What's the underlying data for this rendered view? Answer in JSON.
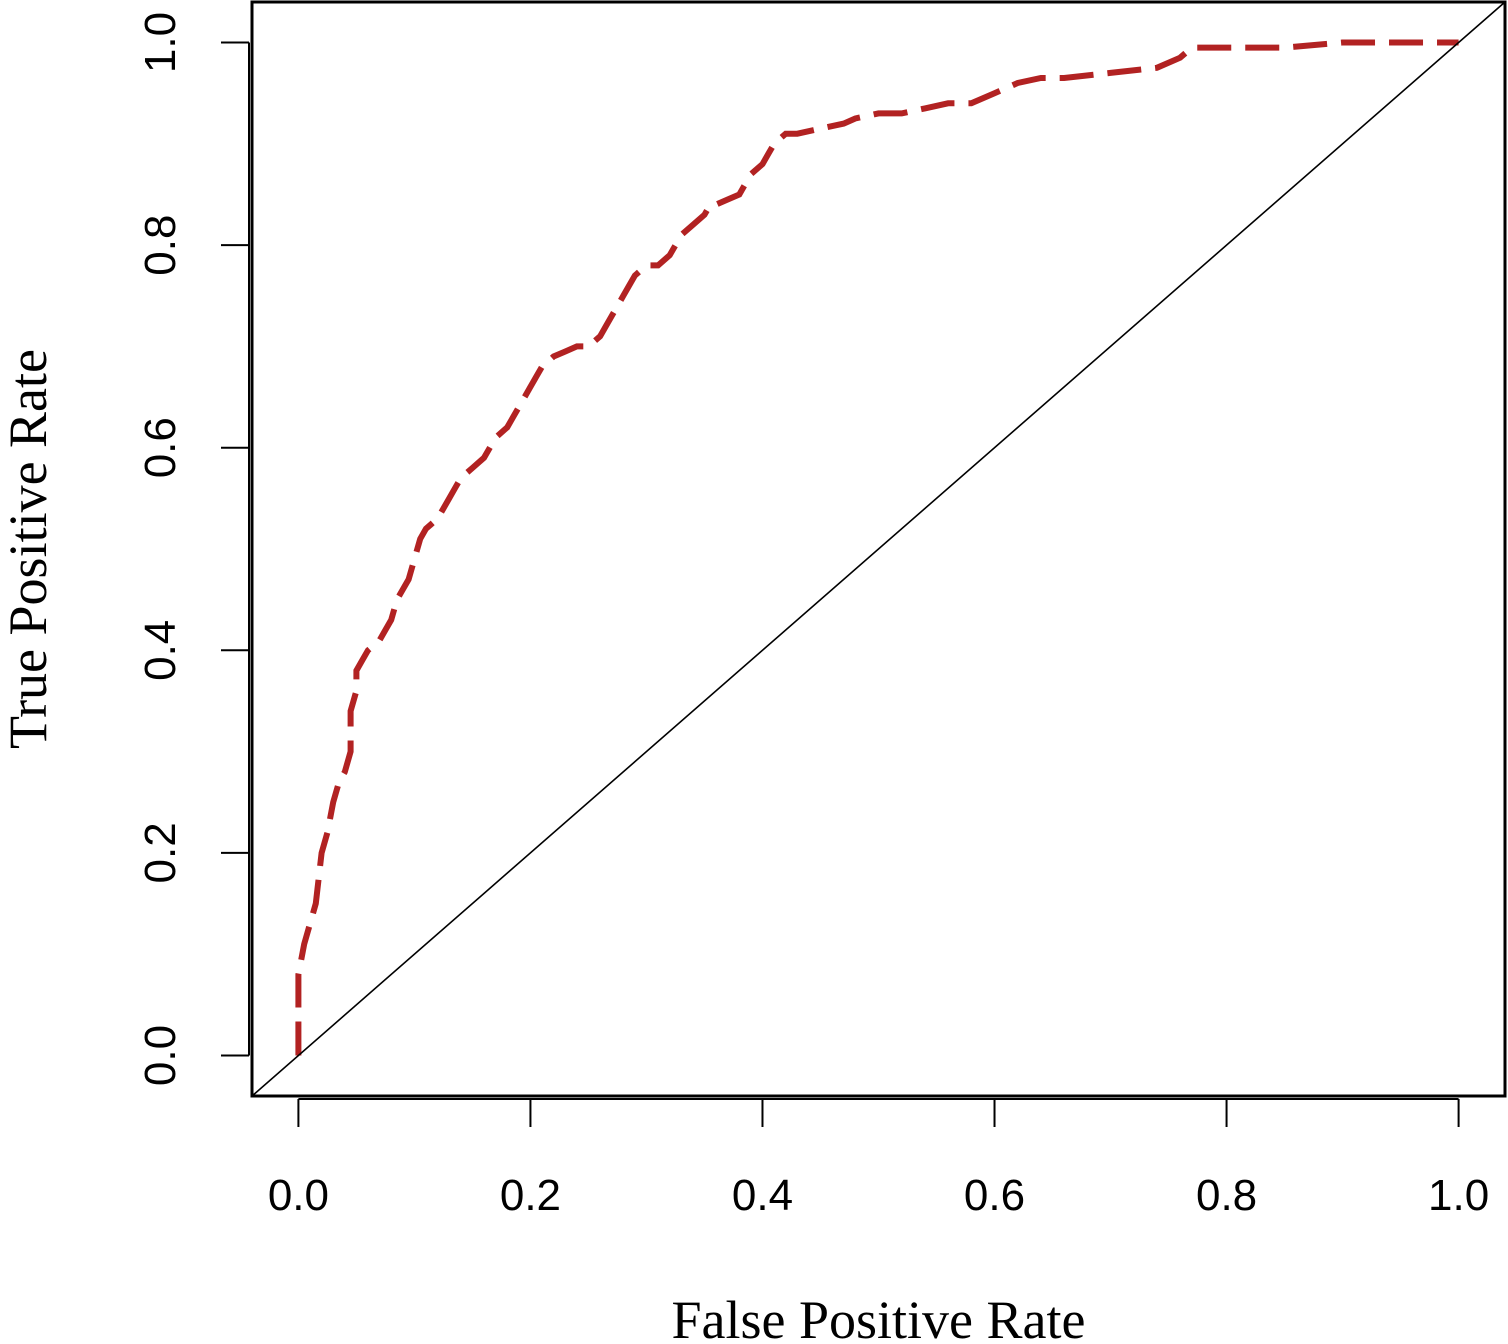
{
  "chart_data": {
    "type": "line",
    "xlabel": "False Positive Rate",
    "ylabel": "True Positive Rate",
    "xlim": [
      -0.04,
      1.04
    ],
    "ylim": [
      -0.04,
      1.04
    ],
    "x_ticks": [
      0.0,
      0.2,
      0.4,
      0.6,
      0.8,
      1.0
    ],
    "x_tick_labels": [
      "0.0",
      "0.2",
      "0.4",
      "0.6",
      "0.8",
      "1.0"
    ],
    "y_ticks": [
      0.0,
      0.2,
      0.4,
      0.6,
      0.8,
      1.0
    ],
    "y_tick_labels": [
      "0.0",
      "0.2",
      "0.4",
      "0.6",
      "0.8",
      "1.0"
    ],
    "grid": false,
    "legend": "none",
    "series": [
      {
        "style": "dashed",
        "color": "#b22222",
        "x": [
          0.0,
          0.0,
          0.005,
          0.01,
          0.015,
          0.02,
          0.025,
          0.03,
          0.035,
          0.04,
          0.045,
          0.045,
          0.05,
          0.05,
          0.055,
          0.06,
          0.065,
          0.07,
          0.075,
          0.08,
          0.085,
          0.09,
          0.095,
          0.1,
          0.105,
          0.11,
          0.115,
          0.12,
          0.125,
          0.13,
          0.135,
          0.14,
          0.145,
          0.15,
          0.155,
          0.16,
          0.165,
          0.17,
          0.175,
          0.18,
          0.185,
          0.19,
          0.195,
          0.2,
          0.205,
          0.21,
          0.22,
          0.23,
          0.24,
          0.25,
          0.26,
          0.265,
          0.27,
          0.275,
          0.28,
          0.285,
          0.29,
          0.3,
          0.31,
          0.32,
          0.325,
          0.33,
          0.34,
          0.35,
          0.355,
          0.36,
          0.37,
          0.38,
          0.385,
          0.39,
          0.4,
          0.405,
          0.41,
          0.415,
          0.42,
          0.43,
          0.45,
          0.47,
          0.48,
          0.5,
          0.52,
          0.54,
          0.56,
          0.58,
          0.59,
          0.6,
          0.62,
          0.64,
          0.66,
          0.7,
          0.74,
          0.76,
          0.77,
          0.8,
          0.85,
          0.9,
          0.95,
          1.0
        ],
        "y": [
          0.0,
          0.08,
          0.11,
          0.13,
          0.15,
          0.2,
          0.22,
          0.25,
          0.27,
          0.28,
          0.3,
          0.34,
          0.36,
          0.38,
          0.39,
          0.4,
          0.405,
          0.41,
          0.42,
          0.43,
          0.45,
          0.46,
          0.47,
          0.49,
          0.51,
          0.52,
          0.525,
          0.53,
          0.54,
          0.55,
          0.56,
          0.57,
          0.575,
          0.58,
          0.585,
          0.59,
          0.6,
          0.61,
          0.615,
          0.62,
          0.63,
          0.64,
          0.65,
          0.66,
          0.67,
          0.68,
          0.69,
          0.695,
          0.7,
          0.7,
          0.71,
          0.72,
          0.73,
          0.74,
          0.75,
          0.76,
          0.77,
          0.78,
          0.78,
          0.79,
          0.8,
          0.81,
          0.82,
          0.83,
          0.84,
          0.84,
          0.845,
          0.85,
          0.86,
          0.87,
          0.88,
          0.89,
          0.9,
          0.905,
          0.91,
          0.91,
          0.915,
          0.92,
          0.925,
          0.93,
          0.93,
          0.935,
          0.94,
          0.94,
          0.945,
          0.95,
          0.96,
          0.965,
          0.965,
          0.97,
          0.975,
          0.985,
          0.995,
          0.995,
          0.995,
          1.0,
          1.0,
          1.0
        ]
      },
      {
        "style": "solid",
        "color": "#000000",
        "x": [
          -0.04,
          1.04
        ],
        "y": [
          -0.04,
          1.04
        ]
      }
    ]
  }
}
